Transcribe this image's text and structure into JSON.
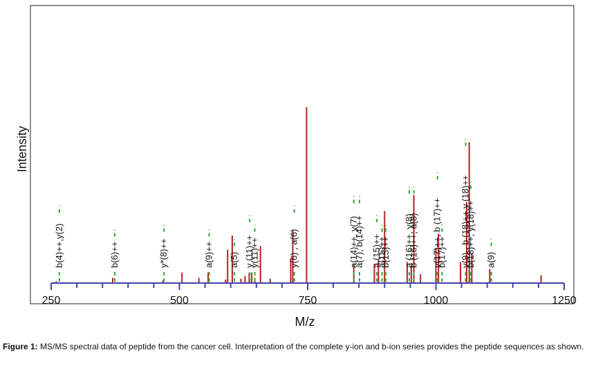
{
  "chart_data": {
    "type": "bar",
    "xlabel": "M/z",
    "ylabel": "Intensity",
    "xlim": [
      250,
      1250
    ],
    "xticks": [
      250,
      500,
      750,
      1000,
      1250
    ],
    "ylim": [
      0,
      100
    ],
    "grid": false,
    "series": [
      {
        "values": [
          {
            "x": 260,
            "y": 1
          },
          {
            "x": 370,
            "y": 3
          },
          {
            "x": 468,
            "y": 1.5
          },
          {
            "x": 505,
            "y": 6
          },
          {
            "x": 538,
            "y": 3
          },
          {
            "x": 556,
            "y": 6
          },
          {
            "x": 590,
            "y": 2
          },
          {
            "x": 594,
            "y": 19
          },
          {
            "x": 603,
            "y": 27
          },
          {
            "x": 620,
            "y": 2.5
          },
          {
            "x": 628,
            "y": 4
          },
          {
            "x": 636,
            "y": 5.5
          },
          {
            "x": 641,
            "y": 6
          },
          {
            "x": 647,
            "y": 3
          },
          {
            "x": 658,
            "y": 21
          },
          {
            "x": 677,
            "y": 2.5
          },
          {
            "x": 717,
            "y": 14
          },
          {
            "x": 721,
            "y": 30
          },
          {
            "x": 748,
            "y": 100
          },
          {
            "x": 840,
            "y": 11
          },
          {
            "x": 880,
            "y": 11
          },
          {
            "x": 888,
            "y": 13
          },
          {
            "x": 900,
            "y": 41
          },
          {
            "x": 944,
            "y": 12
          },
          {
            "x": 952,
            "y": 10
          },
          {
            "x": 957,
            "y": 50
          },
          {
            "x": 970,
            "y": 5
          },
          {
            "x": 1000,
            "y": 20
          },
          {
            "x": 1005,
            "y": 28
          },
          {
            "x": 1048,
            "y": 12
          },
          {
            "x": 1060,
            "y": 46
          },
          {
            "x": 1065,
            "y": 80
          },
          {
            "x": 1070,
            "y": 17
          },
          {
            "x": 1105,
            "y": 8
          },
          {
            "x": 1205,
            "y": 4.5
          }
        ]
      }
    ],
    "annotations": [
      {
        "x": 266,
        "text": "b(4)++,y(2)"
      },
      {
        "x": 374,
        "text": "b(6)++"
      },
      {
        "x": 470,
        "text": "y*(8)++"
      },
      {
        "x": 558,
        "text": "a(9)++"
      },
      {
        "x": 607,
        "text": "a(5)"
      },
      {
        "x": 637,
        "text": "y  (11)++"
      },
      {
        "x": 647,
        "text": "y(11)++"
      },
      {
        "x": 724,
        "text": "y(6) , a(6)"
      },
      {
        "x": 840,
        "text": "a(14)++, y(7)"
      },
      {
        "x": 851,
        "text": "a(7), b(14)++"
      },
      {
        "x": 885,
        "text": "a  (15)++"
      },
      {
        "x": 895,
        "text": "a(15)++"
      },
      {
        "x": 902,
        "text": "b(15)++"
      },
      {
        "x": 948,
        "text": "a  (16)++, y(8)"
      },
      {
        "x": 957,
        "text": "b  (16)++, a(8)"
      },
      {
        "x": 1003,
        "text": "y(17)++, b  (17)++"
      },
      {
        "x": 1012,
        "text": "b(17)++"
      },
      {
        "x": 1058,
        "text": "y(9) , b (18)++,y  (18)++"
      },
      {
        "x": 1068,
        "text": "b(18)++, y(18)++"
      },
      {
        "x": 1108,
        "text": "a(9)"
      }
    ]
  },
  "caption": {
    "label": "Figure 1:",
    "text": " MS/MS spectral data of peptide from the cancer cell. Interpretation of the complete y-ion and b-ion series provides the peptide sequences as shown."
  },
  "colors": {
    "peak": "#b22222",
    "axis": "#4040b0",
    "guide": "#2eaa2e",
    "frame": "#222222"
  }
}
